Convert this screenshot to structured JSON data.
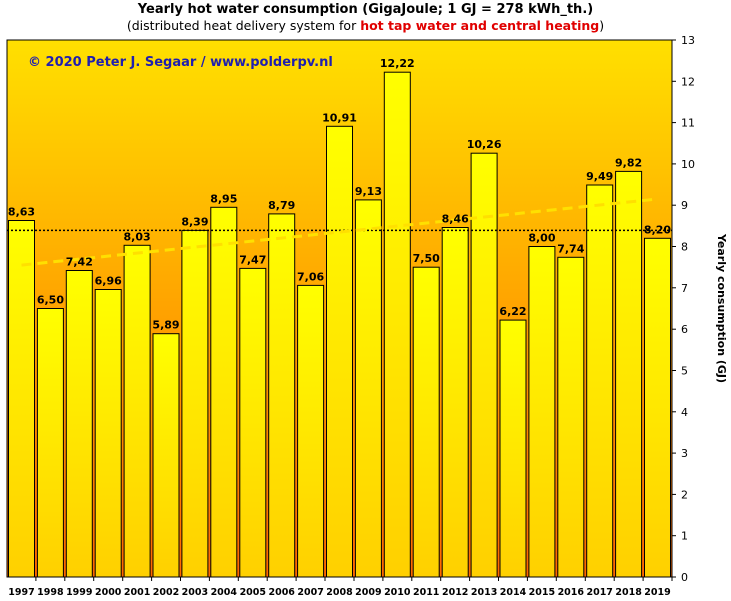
{
  "title": "Yearly hot water consumption (GigaJoule; 1 GJ = 278 kWh_th.)",
  "subtitle_prefix": "(distributed heat delivery system for ",
  "subtitle_highlight": "hot tap water and central heating",
  "subtitle_suffix": ")",
  "copyright": "© 2020 Peter J. Segaar / www.polderpv.nl",
  "colors": {
    "bar_fill_top": "#ffff00",
    "bar_fill_bottom": "#ffd000",
    "background_top": "#ffe000",
    "background_bottom": "#ff6600",
    "trend_line": "#ffe000",
    "copyright": "#1f1fb0",
    "highlight": "#e00000"
  },
  "chart_data": {
    "type": "bar",
    "categories": [
      "1997",
      "1998",
      "1999",
      "2000",
      "2001",
      "2002",
      "2003",
      "2004",
      "2005",
      "2006",
      "2007",
      "2008",
      "2009",
      "2010",
      "2011",
      "2012",
      "2013",
      "2014",
      "2015",
      "2016",
      "2017",
      "2018",
      "2019"
    ],
    "values": [
      8.63,
      6.5,
      7.42,
      6.96,
      8.03,
      5.89,
      8.39,
      8.95,
      7.47,
      8.79,
      7.06,
      10.91,
      9.13,
      12.22,
      7.5,
      8.46,
      10.26,
      6.22,
      8.0,
      7.74,
      9.49,
      9.82,
      8.2
    ],
    "value_labels": [
      "8,63",
      "6,50",
      "7,42",
      "6,96",
      "8,03",
      "5,89",
      "8,39",
      "8,95",
      "7,47",
      "8,79",
      "7,06",
      "10,91",
      "9,13",
      "12,22",
      "7,50",
      "8,46",
      "10,26",
      "6,22",
      "8,00",
      "7,74",
      "9,49",
      "9,82",
      "8,20"
    ],
    "ylabel": "Yearly consumption (GJ)",
    "ylim": [
      0,
      13
    ],
    "yticks": [
      "0",
      "1",
      "2",
      "3",
      "4",
      "5",
      "6",
      "7",
      "8",
      "9",
      "10",
      "11",
      "12",
      "13"
    ],
    "y_axis_side": "right",
    "average_line": 8.39,
    "trend_line": {
      "start": 7.55,
      "end": 9.15
    },
    "grid": false,
    "legend": "none"
  }
}
